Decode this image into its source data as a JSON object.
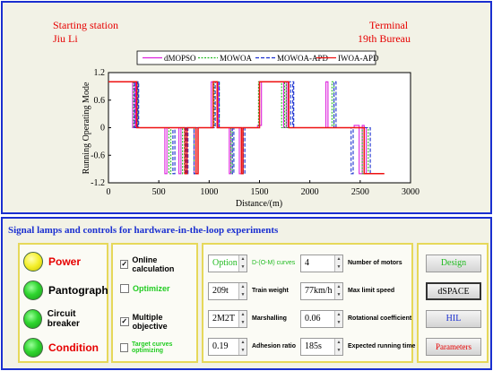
{
  "header": {
    "start_label": "Starting station",
    "start_name": "Jiu Li",
    "end_label": "Terminal",
    "end_name": "19th Bureau"
  },
  "chart_data": {
    "type": "line",
    "ylabel": "Running Operating Mode",
    "xlabel": "Distance/(m)",
    "xlim": [
      0,
      3000
    ],
    "ylim": [
      -1.2,
      1.2
    ],
    "x_ticks": [
      "0",
      "500",
      "1000",
      "1500",
      "2000",
      "2500",
      "3000"
    ],
    "y_ticks": [
      "1.2",
      "0.6",
      "0",
      "-0.6",
      "-1.2"
    ],
    "grid": false,
    "legend_position": "top",
    "series": [
      {
        "name": "dMOPSO",
        "color": "#dd22dd",
        "dash": "solid",
        "points": [
          [
            0,
            1
          ],
          [
            240,
            1
          ],
          [
            240,
            0
          ],
          [
            265,
            0
          ],
          [
            265,
            1
          ],
          [
            275,
            1
          ],
          [
            275,
            0
          ],
          [
            560,
            0
          ],
          [
            560,
            -1
          ],
          [
            580,
            -1
          ],
          [
            580,
            0
          ],
          [
            700,
            0
          ],
          [
            700,
            -1
          ],
          [
            720,
            -1
          ],
          [
            720,
            0
          ],
          [
            850,
            0
          ],
          [
            850,
            -1
          ],
          [
            870,
            -1
          ],
          [
            870,
            0
          ],
          [
            1020,
            0
          ],
          [
            1020,
            1
          ],
          [
            1090,
            1
          ],
          [
            1090,
            0
          ],
          [
            1200,
            0
          ],
          [
            1200,
            -1
          ],
          [
            1215,
            -1
          ],
          [
            1215,
            0
          ],
          [
            1300,
            0
          ],
          [
            1300,
            -1
          ],
          [
            1320,
            -1
          ],
          [
            1320,
            0
          ],
          [
            1480,
            0
          ],
          [
            1480,
            0.05
          ],
          [
            1520,
            0.05
          ],
          [
            1520,
            1
          ],
          [
            1740,
            1
          ],
          [
            1740,
            0
          ],
          [
            1770,
            0
          ],
          [
            1770,
            1
          ],
          [
            1785,
            1
          ],
          [
            1785,
            0
          ],
          [
            2160,
            0
          ],
          [
            2160,
            1
          ],
          [
            2180,
            1
          ],
          [
            2180,
            0
          ],
          [
            2440,
            0
          ],
          [
            2440,
            0.05
          ],
          [
            2490,
            0.05
          ],
          [
            2490,
            -1
          ],
          [
            2520,
            -1
          ],
          [
            2520,
            0.05
          ],
          [
            2540,
            0.05
          ],
          [
            2540,
            0
          ],
          [
            2560,
            0
          ],
          [
            2560,
            -1
          ],
          [
            2680,
            -1
          ]
        ]
      },
      {
        "name": "MOWOA",
        "color": "#22bb22",
        "dash": "dot",
        "points": [
          [
            0,
            1
          ],
          [
            250,
            1
          ],
          [
            250,
            0
          ],
          [
            285,
            0
          ],
          [
            285,
            1
          ],
          [
            295,
            1
          ],
          [
            295,
            0
          ],
          [
            600,
            0
          ],
          [
            600,
            -1
          ],
          [
            620,
            -1
          ],
          [
            620,
            0
          ],
          [
            735,
            0
          ],
          [
            735,
            -1
          ],
          [
            755,
            -1
          ],
          [
            755,
            0
          ],
          [
            850,
            0
          ],
          [
            850,
            -1
          ],
          [
            870,
            -1
          ],
          [
            870,
            0
          ],
          [
            1050,
            0
          ],
          [
            1050,
            1
          ],
          [
            1100,
            1
          ],
          [
            1100,
            0
          ],
          [
            1215,
            0
          ],
          [
            1215,
            -1
          ],
          [
            1230,
            -1
          ],
          [
            1230,
            0
          ],
          [
            1320,
            0
          ],
          [
            1320,
            -1
          ],
          [
            1340,
            -1
          ],
          [
            1340,
            0
          ],
          [
            1490,
            0
          ],
          [
            1490,
            1
          ],
          [
            1720,
            1
          ],
          [
            1720,
            0
          ],
          [
            1750,
            0
          ],
          [
            1750,
            1
          ],
          [
            1765,
            1
          ],
          [
            1765,
            0
          ],
          [
            2220,
            0
          ],
          [
            2220,
            1
          ],
          [
            2240,
            1
          ],
          [
            2240,
            0
          ],
          [
            2520,
            0
          ],
          [
            2520,
            -1
          ],
          [
            2540,
            -1
          ],
          [
            2540,
            0
          ],
          [
            2580,
            0
          ],
          [
            2580,
            -1
          ],
          [
            2680,
            -1
          ]
        ]
      },
      {
        "name": "MOWOA-APD",
        "color": "#1a2fd0",
        "dash": "dash",
        "points": [
          [
            0,
            1
          ],
          [
            260,
            1
          ],
          [
            260,
            0
          ],
          [
            290,
            0
          ],
          [
            290,
            1
          ],
          [
            300,
            1
          ],
          [
            300,
            0
          ],
          [
            640,
            0
          ],
          [
            640,
            -1
          ],
          [
            660,
            -1
          ],
          [
            660,
            0
          ],
          [
            770,
            0
          ],
          [
            770,
            -1
          ],
          [
            790,
            -1
          ],
          [
            790,
            0
          ],
          [
            850,
            0
          ],
          [
            850,
            -1
          ],
          [
            870,
            -1
          ],
          [
            870,
            0
          ],
          [
            1060,
            0
          ],
          [
            1060,
            1
          ],
          [
            1100,
            1
          ],
          [
            1100,
            0
          ],
          [
            1230,
            0
          ],
          [
            1230,
            -1
          ],
          [
            1245,
            -1
          ],
          [
            1245,
            0
          ],
          [
            1340,
            0
          ],
          [
            1340,
            -1
          ],
          [
            1355,
            -1
          ],
          [
            1355,
            0
          ],
          [
            1500,
            0
          ],
          [
            1500,
            1
          ],
          [
            1810,
            1
          ],
          [
            1810,
            0
          ],
          [
            1830,
            0
          ],
          [
            1830,
            1
          ],
          [
            1840,
            1
          ],
          [
            1840,
            0
          ],
          [
            2240,
            0
          ],
          [
            2240,
            1
          ],
          [
            2260,
            1
          ],
          [
            2260,
            0
          ],
          [
            2410,
            0
          ],
          [
            2410,
            -1
          ],
          [
            2430,
            -1
          ],
          [
            2430,
            0
          ],
          [
            2600,
            0
          ],
          [
            2600,
            -1
          ],
          [
            2680,
            -1
          ]
        ]
      },
      {
        "name": "IWOA-APD",
        "color": "#ee1111",
        "dash": "solid",
        "points": [
          [
            0,
            1
          ],
          [
            280,
            1
          ],
          [
            280,
            0
          ],
          [
            760,
            0
          ],
          [
            760,
            -1
          ],
          [
            780,
            -1
          ],
          [
            780,
            0
          ],
          [
            870,
            0
          ],
          [
            870,
            -1
          ],
          [
            890,
            -1
          ],
          [
            890,
            0
          ],
          [
            1040,
            0
          ],
          [
            1040,
            1
          ],
          [
            1080,
            1
          ],
          [
            1080,
            0
          ],
          [
            1320,
            0
          ],
          [
            1320,
            -1
          ],
          [
            1335,
            -1
          ],
          [
            1335,
            0
          ],
          [
            1500,
            0
          ],
          [
            1500,
            1
          ],
          [
            1790,
            1
          ],
          [
            1790,
            0
          ],
          [
            2540,
            0
          ],
          [
            2540,
            -1
          ],
          [
            2740,
            -1
          ]
        ]
      }
    ]
  },
  "controls": {
    "title": "Signal lamps and controls for hardware-in-the-loop experiments",
    "lamps": [
      {
        "label": "Power",
        "state": "yellow",
        "text_color": "#e60000"
      },
      {
        "label": "Pantograph",
        "state": "green",
        "text_color": "#000000"
      },
      {
        "label": "Circuit breaker",
        "state": "green",
        "text_color": "#000000"
      },
      {
        "label": "Condition",
        "state": "green",
        "text_color": "#e60000"
      }
    ],
    "checks": [
      {
        "label": "Online calculation",
        "checked": true,
        "checkmark": "✓",
        "color": "#000000"
      },
      {
        "label": "Optimizer",
        "checked": false,
        "checkmark": "",
        "color": "#22cc22"
      },
      {
        "label": "Multiple objective",
        "checked": true,
        "checkmark": "✓",
        "color": "#000000"
      },
      {
        "label": "Target curves optimizing",
        "checked": false,
        "checkmark": "",
        "color": "#22cc22"
      }
    ],
    "fields": {
      "option_value": "Option 2",
      "curves_label": "D-(O-M) curves",
      "motors_value": "4",
      "motors_label": "Number of motors",
      "train_weight_value": "209t",
      "train_weight_label": "Train weight",
      "max_speed_value": "77km/h",
      "max_speed_label": "Max limit speed",
      "marshalling_value": "2M2T",
      "marshalling_label": "Marshalling",
      "rotational_value": "0.06",
      "rotational_label": "Rotational coefficient",
      "adhesion_value": "0.19",
      "adhesion_label": "Adhesion ratio",
      "running_time_value": "185s",
      "running_time_label": "Expected running time"
    },
    "buttons": {
      "design": "Design",
      "dspace": "dSPACE",
      "hil": "HIL",
      "parameters": "Parameters"
    }
  }
}
